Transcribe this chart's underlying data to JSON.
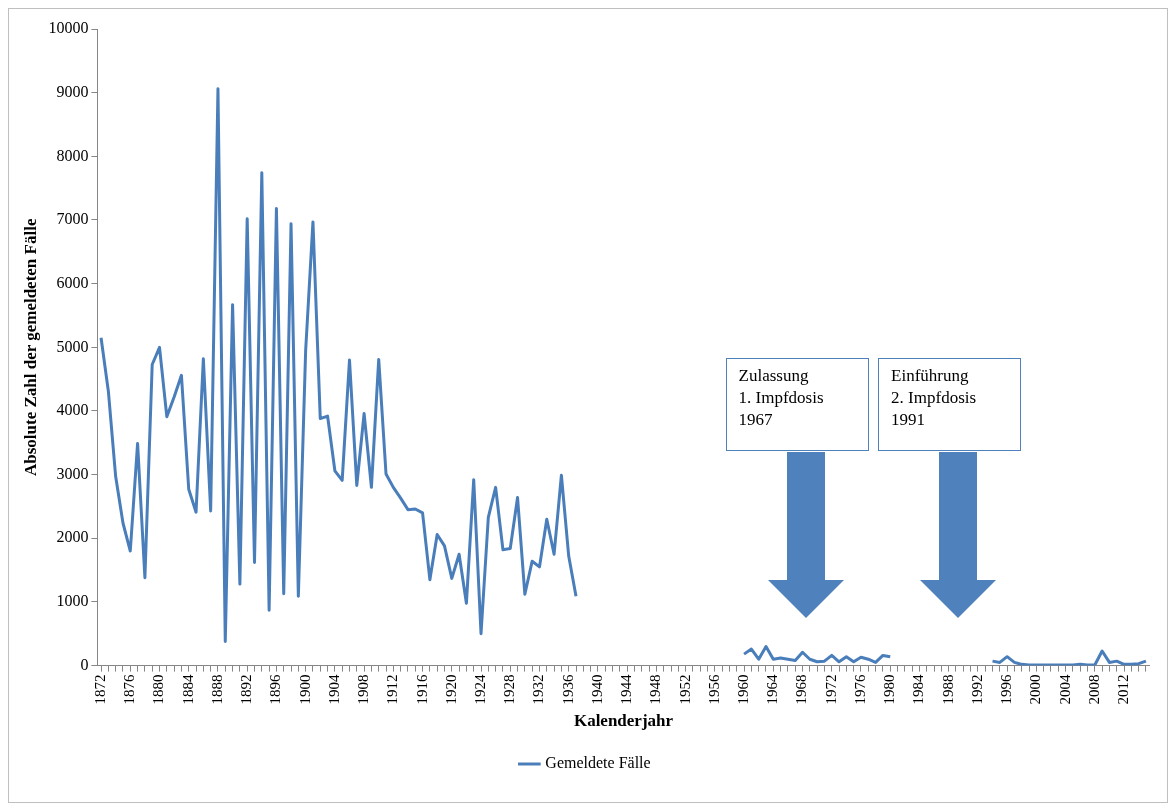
{
  "chart_data": {
    "type": "line",
    "xlabel": "Kalenderjahr",
    "ylabel": "Absolute Zahl der gemeldeten Fälle",
    "categories": [
      "1872",
      null,
      null,
      null,
      "1876",
      null,
      null,
      null,
      "1880",
      null,
      null,
      null,
      "1884",
      null,
      null,
      null,
      "1888",
      null,
      null,
      null,
      "1892",
      null,
      null,
      null,
      "1896",
      null,
      null,
      null,
      "1900",
      null,
      null,
      null,
      "1904",
      null,
      null,
      null,
      "1908",
      null,
      null,
      null,
      "1912",
      null,
      null,
      null,
      "1916",
      null,
      null,
      null,
      "1920",
      null,
      null,
      null,
      "1924",
      null,
      null,
      null,
      "1928",
      null,
      null,
      null,
      "1932",
      null,
      null,
      null,
      "1936",
      null,
      null,
      null,
      "1940",
      null,
      null,
      null,
      "1944",
      null,
      null,
      null,
      "1948",
      null,
      null,
      null,
      "1952",
      null,
      null,
      null,
      "1956",
      null,
      null,
      null,
      "1960",
      null,
      null,
      null,
      "1964",
      null,
      null,
      null,
      "1968",
      null,
      null,
      null,
      "1972",
      null,
      null,
      null,
      "1976",
      null,
      null,
      null,
      "1980",
      null,
      null,
      null,
      "1984",
      null,
      null,
      null,
      "1988",
      null,
      null,
      null,
      "1992",
      null,
      null,
      null,
      "1996",
      null,
      null,
      null,
      "2000",
      null,
      null,
      null,
      "2004",
      null,
      null,
      null,
      "2008",
      null,
      null,
      null,
      "2012",
      null,
      null,
      null
    ],
    "series": [
      {
        "name": "Gemeldete Fälle",
        "color": "#4a7ebb",
        "values": [
          5150,
          4310,
          2970,
          2240,
          1800,
          3490,
          1380,
          4730,
          5000,
          3910,
          4220,
          4560,
          2770,
          2410,
          4820,
          2430,
          9060,
          380,
          5670,
          1280,
          7020,
          1620,
          7740,
          870,
          7180,
          1130,
          6940,
          1090,
          4950,
          6970,
          3880,
          3920,
          3060,
          2910,
          4800,
          2830,
          3960,
          2800,
          4810,
          3010,
          2800,
          2630,
          2450,
          2460,
          2400,
          1350,
          2060,
          1880,
          1370,
          1750,
          980,
          2920,
          500,
          2330,
          2800,
          1820,
          1840,
          2640,
          1120,
          1640,
          1550,
          2300,
          1750,
          2990,
          1720,
          1090,
          null,
          null,
          null,
          null,
          null,
          null,
          null,
          null,
          null,
          null,
          null,
          null,
          null,
          null,
          null,
          null,
          null,
          null,
          null,
          null,
          null,
          null,
          180,
          260,
          100,
          300,
          100,
          120,
          100,
          80,
          210,
          100,
          60,
          70,
          160,
          60,
          140,
          60,
          130,
          100,
          50,
          160,
          140,
          null,
          null,
          null,
          null,
          null,
          null,
          null,
          null,
          null,
          null,
          null,
          null,
          null,
          70,
          50,
          140,
          50,
          20,
          10,
          10,
          10,
          10,
          10,
          10,
          10,
          20,
          10,
          10,
          230,
          50,
          70,
          20,
          20,
          30,
          70
        ]
      }
    ],
    "ylim": [
      0,
      10000
    ],
    "yticks": [
      0,
      1000,
      2000,
      3000,
      4000,
      5000,
      6000,
      7000,
      8000,
      9000,
      10000
    ],
    "grid": false,
    "legend": "bottom",
    "marker": "none",
    "line_style": "solid",
    "annotations": [
      "Zulassung\n1. Impfdosis\n1967",
      "Einführung\n2. Impfdosis\n1991"
    ]
  }
}
